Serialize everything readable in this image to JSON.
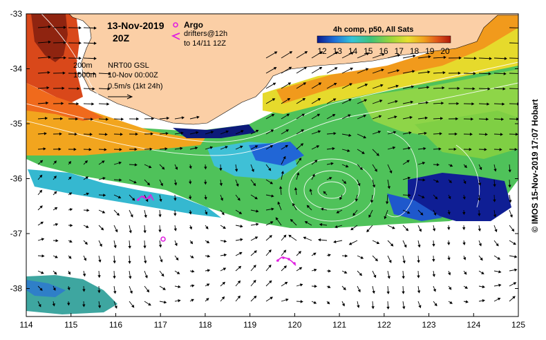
{
  "title": {
    "date": "13-Nov-2019",
    "time": "20Z"
  },
  "legend": {
    "argo_label": "Argo",
    "drifters_label": "drifters@12h",
    "drifters_sub": "to 14/11 12Z",
    "argo_color": "#e020e0",
    "drifter_color": "#e020e0"
  },
  "contours": {
    "label_200m": "200m",
    "label_1000m": "1000m"
  },
  "altimetry": {
    "product": "NRT00 GSL",
    "date": "10-Nov 00:00Z",
    "scale": "0.5m/s (1kt 24h)"
  },
  "colorbar": {
    "title": "4h comp, p50, All Sats",
    "ticks": [
      "12",
      "13",
      "14",
      "15",
      "16",
      "17",
      "18",
      "19",
      "20"
    ],
    "colors": [
      "#0a1a8c",
      "#1e6fd8",
      "#35c4d8",
      "#3ec27a",
      "#9ad53a",
      "#e8e030",
      "#f1a01e",
      "#e0561a",
      "#b01a0a"
    ]
  },
  "axes": {
    "x_ticks": [
      "114",
      "115",
      "116",
      "117",
      "118",
      "119",
      "120",
      "121",
      "122",
      "123",
      "124",
      "125"
    ],
    "y_ticks": [
      "-33",
      "-34",
      "-35",
      "-36",
      "-37",
      "-38"
    ]
  },
  "credit": "© IMOS 15-Nov-2019 17:07 Hobart",
  "colors": {
    "land": "#fbcfa6",
    "ocean_no_data": "#ffffff",
    "contour": "#ffffff",
    "arrow": "#000000"
  }
}
